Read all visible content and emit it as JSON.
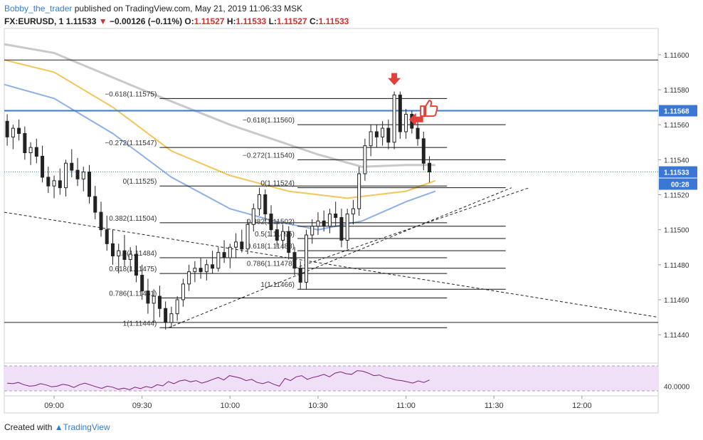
{
  "header": {
    "user": "Bobby_the_trader",
    "published": "published on TradingView.com, May 21, 2019 11:06:33 MSK"
  },
  "symbol_line": {
    "symbol": "FX:EURUSD, 1",
    "last": "1.11533",
    "change": "−0.00126 (−0.11%)",
    "o_label": "O:",
    "o": "1.11527",
    "h_label": "H:",
    "h": "1.11533",
    "l_label": "L:",
    "l": "1.11527",
    "c_label": "C:",
    "c": "1.11533"
  },
  "footer": {
    "prefix": "Created with",
    "brand": "TradingView"
  },
  "colors": {
    "candle": "#222222",
    "ma_gray": "#c9c9c9",
    "ma_yellow": "#f3c55a",
    "ma_blue": "#8fb0e6",
    "rsi_line": "#7a1f7a",
    "rsi_fill": "#efe0f7",
    "price_badge": "#3b78d6",
    "markers": "#e0413a"
  },
  "chart_data": {
    "type": "candlestick",
    "symbol": "FX:EURUSD",
    "timeframe": "1",
    "y_range": [
      1.11425,
      1.11615
    ],
    "x_range": [
      "08:43",
      "12:26"
    ],
    "y_ticks": [
      "1.11600",
      "1.11580",
      "1.11560",
      "1.11540",
      "1.11520",
      "1.11500",
      "1.11480",
      "1.11460",
      "1.11440"
    ],
    "x_ticks": [
      "09:00",
      "09:30",
      "10:00",
      "10:30",
      "11:00",
      "11:30",
      "12:00"
    ],
    "last_price": "1.11533",
    "countdown": "00:28",
    "horizontal_line": "1.11568",
    "candles": [
      {
        "t": "08:44",
        "o": 1.11562,
        "h": 1.11566,
        "l": 1.11548,
        "c": 1.11553
      },
      {
        "t": "08:46",
        "o": 1.11553,
        "h": 1.1156,
        "l": 1.11546,
        "c": 1.11558
      },
      {
        "t": "08:48",
        "o": 1.11558,
        "h": 1.11563,
        "l": 1.11551,
        "c": 1.11555
      },
      {
        "t": "08:50",
        "o": 1.11555,
        "h": 1.11559,
        "l": 1.1154,
        "c": 1.11544
      },
      {
        "t": "08:52",
        "o": 1.11544,
        "h": 1.1155,
        "l": 1.11537,
        "c": 1.11547
      },
      {
        "t": "08:54",
        "o": 1.11547,
        "h": 1.11552,
        "l": 1.11538,
        "c": 1.11542
      },
      {
        "t": "08:56",
        "o": 1.11542,
        "h": 1.11548,
        "l": 1.11527,
        "c": 1.1153
      },
      {
        "t": "08:58",
        "o": 1.1153,
        "h": 1.11536,
        "l": 1.11521,
        "c": 1.11525
      },
      {
        "t": "09:00",
        "o": 1.11525,
        "h": 1.11531,
        "l": 1.11518,
        "c": 1.11528
      },
      {
        "t": "09:02",
        "o": 1.11528,
        "h": 1.11535,
        "l": 1.1152,
        "c": 1.11524
      },
      {
        "t": "09:04",
        "o": 1.11524,
        "h": 1.1154,
        "l": 1.11519,
        "c": 1.11538
      },
      {
        "t": "09:06",
        "o": 1.11538,
        "h": 1.11546,
        "l": 1.1153,
        "c": 1.11534
      },
      {
        "t": "09:08",
        "o": 1.11534,
        "h": 1.11541,
        "l": 1.11525,
        "c": 1.11529
      },
      {
        "t": "09:10",
        "o": 1.11529,
        "h": 1.11536,
        "l": 1.11522,
        "c": 1.11533
      },
      {
        "t": "09:12",
        "o": 1.11533,
        "h": 1.11537,
        "l": 1.11515,
        "c": 1.11519
      },
      {
        "t": "09:14",
        "o": 1.11519,
        "h": 1.11525,
        "l": 1.11506,
        "c": 1.1151
      },
      {
        "t": "09:16",
        "o": 1.1151,
        "h": 1.11516,
        "l": 1.11496,
        "c": 1.115
      },
      {
        "t": "09:18",
        "o": 1.115,
        "h": 1.11508,
        "l": 1.11488,
        "c": 1.11492
      },
      {
        "t": "09:20",
        "o": 1.11492,
        "h": 1.115,
        "l": 1.1148,
        "c": 1.11485
      },
      {
        "t": "09:22",
        "o": 1.11485,
        "h": 1.11492,
        "l": 1.11475,
        "c": 1.11488
      },
      {
        "t": "09:24",
        "o": 1.11488,
        "h": 1.11497,
        "l": 1.11479,
        "c": 1.11483
      },
      {
        "t": "09:26",
        "o": 1.11483,
        "h": 1.1149,
        "l": 1.11476,
        "c": 1.11486
      },
      {
        "t": "09:28",
        "o": 1.11486,
        "h": 1.11491,
        "l": 1.1147,
        "c": 1.11474
      },
      {
        "t": "09:30",
        "o": 1.11474,
        "h": 1.1148,
        "l": 1.1146,
        "c": 1.11465
      },
      {
        "t": "09:32",
        "o": 1.11465,
        "h": 1.11472,
        "l": 1.11452,
        "c": 1.11458
      },
      {
        "t": "09:34",
        "o": 1.11458,
        "h": 1.11466,
        "l": 1.11447,
        "c": 1.11462
      },
      {
        "t": "09:36",
        "o": 1.11462,
        "h": 1.11468,
        "l": 1.1145,
        "c": 1.11455
      },
      {
        "t": "09:38",
        "o": 1.11455,
        "h": 1.11459,
        "l": 1.11443,
        "c": 1.11447
      },
      {
        "t": "09:40",
        "o": 1.11447,
        "h": 1.11456,
        "l": 1.11444,
        "c": 1.11452
      },
      {
        "t": "09:42",
        "o": 1.11452,
        "h": 1.11462,
        "l": 1.11448,
        "c": 1.1146
      },
      {
        "t": "09:44",
        "o": 1.1146,
        "h": 1.11472,
        "l": 1.11456,
        "c": 1.11469
      },
      {
        "t": "09:46",
        "o": 1.11469,
        "h": 1.1148,
        "l": 1.11465,
        "c": 1.11476
      },
      {
        "t": "09:48",
        "o": 1.11476,
        "h": 1.11482,
        "l": 1.1147,
        "c": 1.11478
      },
      {
        "t": "09:50",
        "o": 1.11478,
        "h": 1.11484,
        "l": 1.11472,
        "c": 1.11476
      },
      {
        "t": "09:52",
        "o": 1.11476,
        "h": 1.11483,
        "l": 1.11471,
        "c": 1.1148
      },
      {
        "t": "09:54",
        "o": 1.1148,
        "h": 1.11488,
        "l": 1.11475,
        "c": 1.11478
      },
      {
        "t": "09:56",
        "o": 1.11478,
        "h": 1.1149,
        "l": 1.11476,
        "c": 1.11487
      },
      {
        "t": "09:58",
        "o": 1.11487,
        "h": 1.11494,
        "l": 1.11481,
        "c": 1.11484
      },
      {
        "t": "10:00",
        "o": 1.11484,
        "h": 1.11492,
        "l": 1.11478,
        "c": 1.1149
      },
      {
        "t": "10:02",
        "o": 1.1149,
        "h": 1.11498,
        "l": 1.11484,
        "c": 1.11493
      },
      {
        "t": "10:04",
        "o": 1.11493,
        "h": 1.115,
        "l": 1.11487,
        "c": 1.11489
      },
      {
        "t": "10:06",
        "o": 1.11489,
        "h": 1.11506,
        "l": 1.11486,
        "c": 1.11503
      },
      {
        "t": "10:08",
        "o": 1.11503,
        "h": 1.11515,
        "l": 1.11499,
        "c": 1.11512
      },
      {
        "t": "10:10",
        "o": 1.11512,
        "h": 1.11524,
        "l": 1.11508,
        "c": 1.1152
      },
      {
        "t": "10:12",
        "o": 1.1152,
        "h": 1.11523,
        "l": 1.11505,
        "c": 1.11509
      },
      {
        "t": "10:14",
        "o": 1.11509,
        "h": 1.11514,
        "l": 1.11496,
        "c": 1.115
      },
      {
        "t": "10:16",
        "o": 1.115,
        "h": 1.11505,
        "l": 1.1149,
        "c": 1.11494
      },
      {
        "t": "10:18",
        "o": 1.11494,
        "h": 1.11503,
        "l": 1.11489,
        "c": 1.11499
      },
      {
        "t": "10:20",
        "o": 1.11499,
        "h": 1.11502,
        "l": 1.11483,
        "c": 1.11487
      },
      {
        "t": "10:22",
        "o": 1.11487,
        "h": 1.1149,
        "l": 1.11474,
        "c": 1.11478
      },
      {
        "t": "10:24",
        "o": 1.11478,
        "h": 1.11482,
        "l": 1.11466,
        "c": 1.1147
      },
      {
        "t": "10:26",
        "o": 1.1147,
        "h": 1.115,
        "l": 1.11466,
        "c": 1.11497
      },
      {
        "t": "10:28",
        "o": 1.11497,
        "h": 1.11506,
        "l": 1.11492,
        "c": 1.11502
      },
      {
        "t": "10:30",
        "o": 1.11502,
        "h": 1.1151,
        "l": 1.11497,
        "c": 1.11505
      },
      {
        "t": "10:32",
        "o": 1.11505,
        "h": 1.11511,
        "l": 1.11499,
        "c": 1.11502
      },
      {
        "t": "10:34",
        "o": 1.11502,
        "h": 1.11512,
        "l": 1.11498,
        "c": 1.11509
      },
      {
        "t": "10:36",
        "o": 1.11509,
        "h": 1.11516,
        "l": 1.11502,
        "c": 1.11507
      },
      {
        "t": "10:38",
        "o": 1.11507,
        "h": 1.11512,
        "l": 1.1149,
        "c": 1.11494
      },
      {
        "t": "10:40",
        "o": 1.11494,
        "h": 1.11512,
        "l": 1.11489,
        "c": 1.11509
      },
      {
        "t": "10:42",
        "o": 1.11509,
        "h": 1.11517,
        "l": 1.11503,
        "c": 1.11512
      },
      {
        "t": "10:44",
        "o": 1.11512,
        "h": 1.11536,
        "l": 1.11508,
        "c": 1.11532
      },
      {
        "t": "10:46",
        "o": 1.11532,
        "h": 1.11552,
        "l": 1.11528,
        "c": 1.11548
      },
      {
        "t": "10:48",
        "o": 1.11548,
        "h": 1.1156,
        "l": 1.11542,
        "c": 1.11556
      },
      {
        "t": "10:50",
        "o": 1.11556,
        "h": 1.1156,
        "l": 1.11547,
        "c": 1.11553
      },
      {
        "t": "10:52",
        "o": 1.11553,
        "h": 1.11562,
        "l": 1.11548,
        "c": 1.11558
      },
      {
        "t": "10:54",
        "o": 1.11558,
        "h": 1.11563,
        "l": 1.11546,
        "c": 1.1155
      },
      {
        "t": "10:56",
        "o": 1.1155,
        "h": 1.11579,
        "l": 1.11546,
        "c": 1.11577
      },
      {
        "t": "10:58",
        "o": 1.11577,
        "h": 1.11579,
        "l": 1.11552,
        "c": 1.11556
      },
      {
        "t": "11:00",
        "o": 1.11556,
        "h": 1.11569,
        "l": 1.11552,
        "c": 1.11566
      },
      {
        "t": "11:02",
        "o": 1.11566,
        "h": 1.11568,
        "l": 1.11555,
        "c": 1.11558
      },
      {
        "t": "11:04",
        "o": 1.11558,
        "h": 1.11563,
        "l": 1.11548,
        "c": 1.11552
      },
      {
        "t": "11:06",
        "o": 1.11552,
        "h": 1.11556,
        "l": 1.11534,
        "c": 1.11538
      },
      {
        "t": "11:08",
        "o": 1.11538,
        "h": 1.11542,
        "l": 1.11527,
        "c": 1.11533
      }
    ],
    "moving_averages": [
      {
        "color": "gray",
        "points": [
          [
            "08:43",
            1.11606
          ],
          [
            "09:00",
            1.11601
          ],
          [
            "09:30",
            1.1158
          ],
          [
            "10:00",
            1.1156
          ],
          [
            "10:30",
            1.11543
          ],
          [
            "10:45",
            1.11536
          ],
          [
            "11:00",
            1.11537
          ],
          [
            "11:10",
            1.11537
          ]
        ]
      },
      {
        "color": "yellow",
        "points": [
          [
            "08:43",
            1.11597
          ],
          [
            "09:00",
            1.1159
          ],
          [
            "09:20",
            1.1157
          ],
          [
            "09:40",
            1.11545
          ],
          [
            "10:00",
            1.11531
          ],
          [
            "10:20",
            1.11522
          ],
          [
            "10:40",
            1.11518
          ],
          [
            "11:00",
            1.11522
          ],
          [
            "11:10",
            1.11528
          ]
        ]
      },
      {
        "color": "blue",
        "points": [
          [
            "08:43",
            1.11583
          ],
          [
            "09:00",
            1.11575
          ],
          [
            "09:20",
            1.11555
          ],
          [
            "09:40",
            1.1153
          ],
          [
            "10:00",
            1.11512
          ],
          [
            "10:15",
            1.11505
          ],
          [
            "10:30",
            1.115
          ],
          [
            "10:45",
            1.11505
          ],
          [
            "11:00",
            1.11516
          ],
          [
            "11:10",
            1.11522
          ]
        ]
      }
    ],
    "trendlines": [
      {
        "style": "dashed",
        "from": [
          "08:43",
          1.1151
        ],
        "to": [
          "12:26",
          1.1145
        ]
      },
      {
        "style": "dashed",
        "from": [
          "09:39",
          1.11444
        ],
        "to": [
          "11:36",
          1.11524
        ]
      },
      {
        "style": "dashed",
        "from": [
          "10:22",
          1.11478
        ],
        "to": [
          "11:42",
          1.11524
        ]
      }
    ],
    "fib_sets": [
      {
        "from": "09:36",
        "to": "11:14",
        "label_x": "09:35",
        "levels": [
          [
            "−0.618(1.11575)",
            1.11575
          ],
          [
            "−0.272(1.11547)",
            1.11547
          ],
          [
            "0(1.11525)",
            1.11525
          ],
          [
            "0.382(1.11504)",
            1.11504
          ],
          [
            "0.5(1.11484)",
            1.11484
          ],
          [
            "0.618(1.11475)",
            1.11475
          ],
          [
            "0.786(1.11461)",
            1.11461
          ],
          [
            "1(1.11444)",
            1.11444
          ]
        ]
      },
      {
        "from": "10:23",
        "to": "11:34",
        "label_x": "10:22",
        "levels": [
          [
            "−0.618(1.11560)",
            1.1156
          ],
          [
            "−0.272(1.11540)",
            1.1154
          ],
          [
            "0(1.11524)",
            1.11524
          ],
          [
            "0.382(1.11502)",
            1.11502
          ],
          [
            "0.5(1.11495)",
            1.11495
          ],
          [
            "0.618(1.11488)",
            1.11488
          ],
          [
            "0.786(1.11478)",
            1.11478
          ],
          [
            "1(1.11466)",
            1.11466
          ]
        ]
      }
    ],
    "extra_lines": [
      {
        "from": "08:43",
        "to": "12:26",
        "y": 1.11597
      },
      {
        "from": "08:43",
        "to": "12:26",
        "y": 1.11447
      }
    ],
    "markers": [
      {
        "type": "arrow-down",
        "t": "10:56",
        "y": 1.11583
      },
      {
        "type": "arrow-left",
        "t": "11:01",
        "y": 1.11563
      },
      {
        "type": "thumbs-up",
        "t": "11:05",
        "y": 1.11569
      }
    ],
    "rsi": {
      "axis_label": "40.0000",
      "values": [
        50,
        48,
        52,
        45,
        40,
        42,
        48,
        44,
        38,
        40,
        46,
        43,
        36,
        45,
        50,
        44,
        38,
        33,
        40,
        37,
        30,
        34,
        29,
        37,
        32,
        39,
        35,
        45,
        41,
        55,
        48,
        57,
        60,
        54,
        58,
        50,
        55,
        62,
        68,
        60,
        74,
        70,
        66,
        58,
        62,
        52,
        48,
        54,
        46,
        40,
        65,
        58,
        70,
        74,
        62,
        68,
        72,
        78,
        70,
        82,
        86,
        80,
        78,
        90,
        88,
        82,
        74,
        76,
        68,
        65,
        60,
        58,
        54,
        50,
        57,
        52,
        60
      ]
    }
  }
}
